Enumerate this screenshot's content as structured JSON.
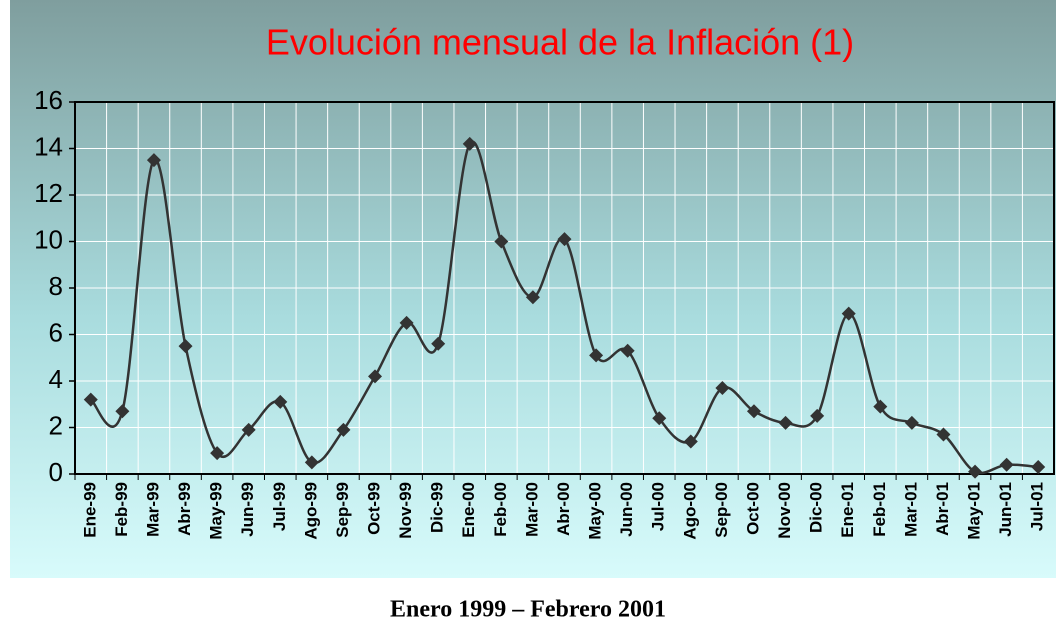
{
  "chart_data": {
    "type": "line",
    "title": "Evolución mensual de la Inflación (1)",
    "subtitle": "Enero 1999 – Febrero 2001",
    "categories": [
      "Ene-99",
      "Feb-99",
      "Mar-99",
      "Abr-99",
      "May-99",
      "Jun-99",
      "Jul-99",
      "Ago-99",
      "Sep-99",
      "Oct-99",
      "Nov-99",
      "Dic-99",
      "Ene-00",
      "Feb-00",
      "Mar-00",
      "Abr-00",
      "May-00",
      "Jun-00",
      "Jul-00",
      "Ago-00",
      "Sep-00",
      "Oct-00",
      "Nov-00",
      "Dic-00",
      "Ene-01",
      "Feb-01",
      "Mar-01",
      "Abr-01",
      "May-01",
      "Jun-01",
      "Jul-01"
    ],
    "values": [
      3.2,
      2.7,
      13.5,
      5.5,
      0.9,
      1.9,
      3.1,
      0.5,
      1.9,
      4.2,
      6.5,
      5.6,
      14.2,
      10.0,
      7.6,
      10.1,
      5.1,
      5.3,
      2.4,
      1.4,
      3.7,
      2.7,
      2.2,
      2.5,
      6.9,
      2.9,
      2.2,
      1.7,
      0.1,
      0.4,
      0.3
    ],
    "color": "#333333",
    "ylim": [
      0,
      16
    ],
    "yticks": [
      0,
      2,
      4,
      6,
      8,
      10,
      12,
      14,
      16
    ],
    "grid": true
  }
}
